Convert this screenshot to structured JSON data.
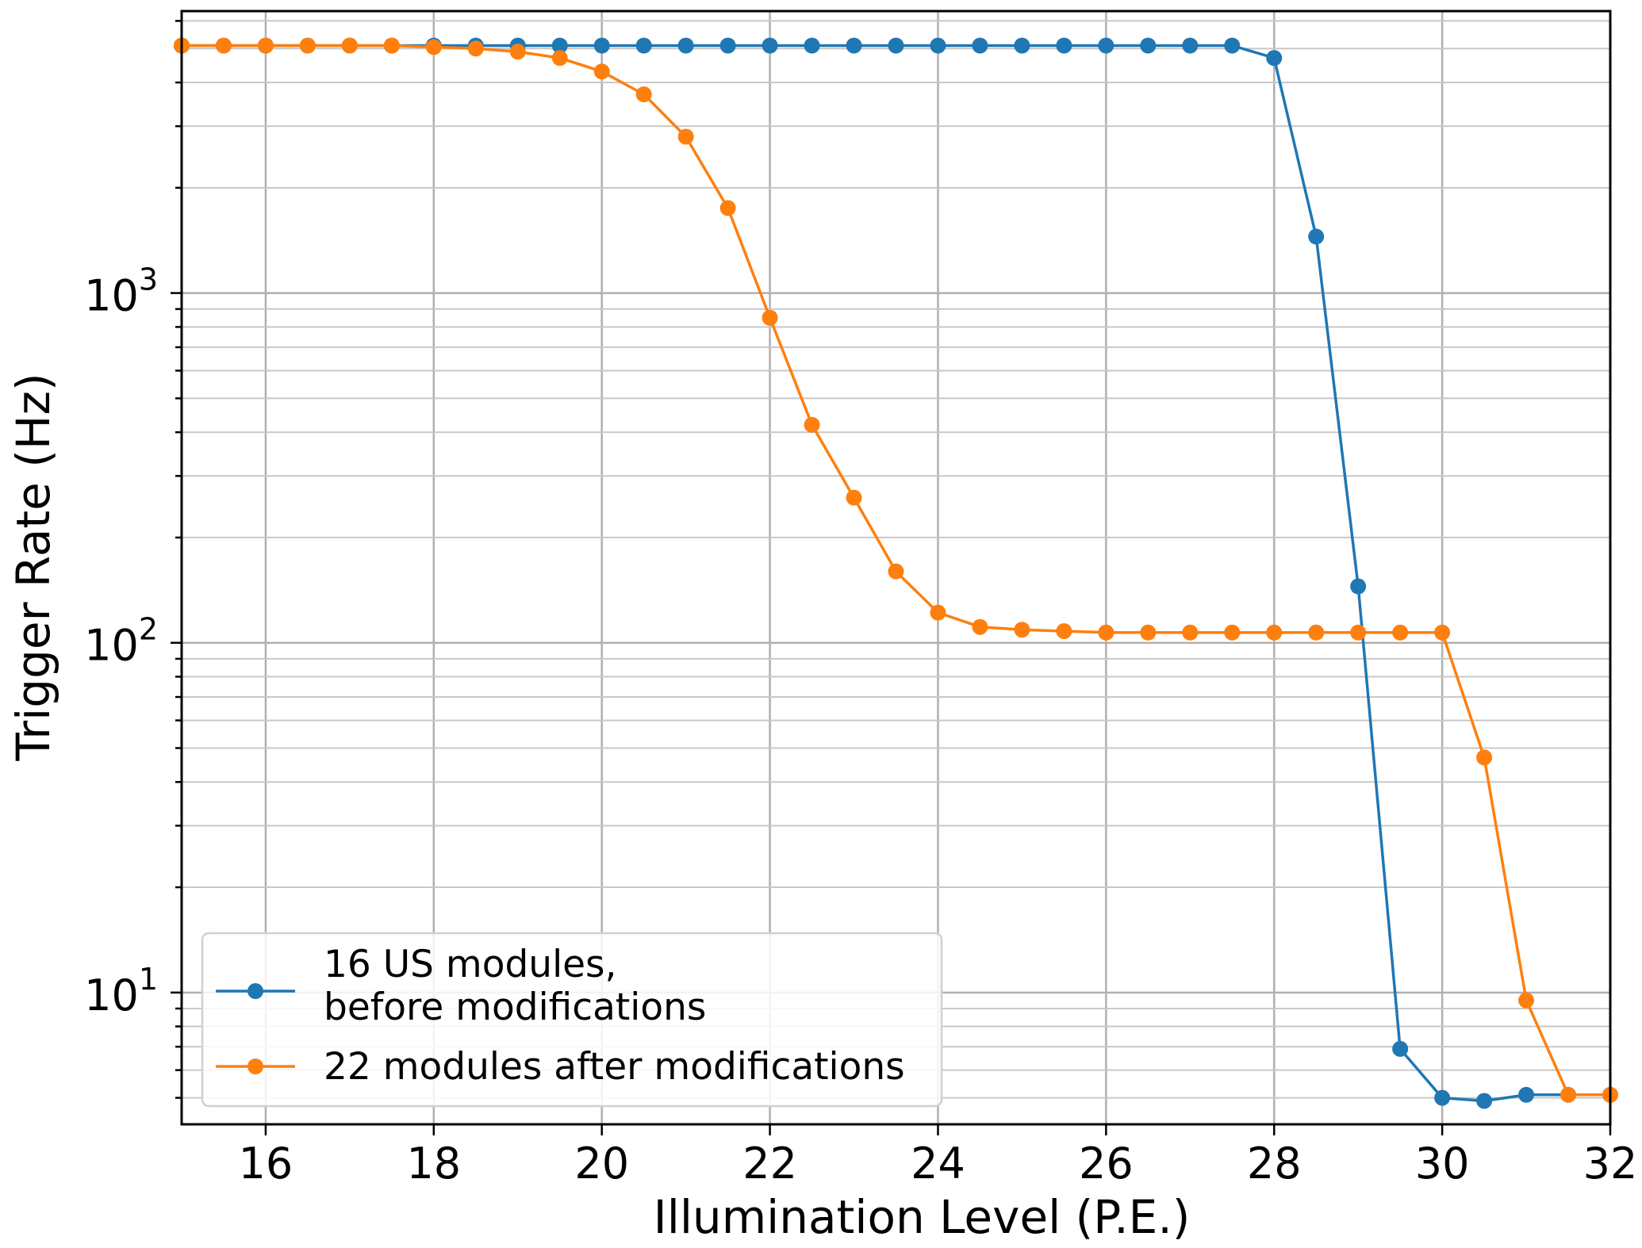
{
  "chart_data": {
    "type": "line",
    "title": "",
    "xlabel": "Illumination Level (P.E.)",
    "ylabel": "Trigger Rate (Hz)",
    "xlim": [
      15,
      32
    ],
    "ylim": [
      4.2,
      6400
    ],
    "yscale": "log",
    "grid": true,
    "legend_position": "lower-left",
    "x_ticks": [
      16,
      18,
      20,
      22,
      24,
      26,
      28,
      30,
      32
    ],
    "y_ticks": [
      {
        "value": 10,
        "base": "10",
        "exp": "1"
      },
      {
        "value": 100,
        "base": "10",
        "exp": "2"
      },
      {
        "value": 1000,
        "base": "10",
        "exp": "3"
      }
    ],
    "series": [
      {
        "name_lines": [
          "16 US modules,",
          " before modifications"
        ],
        "color": "#1f77b4",
        "x": [
          15,
          15.5,
          16,
          16.5,
          17,
          17.5,
          18,
          18.5,
          19,
          19.5,
          20,
          20.5,
          21,
          21.5,
          22,
          22.5,
          23,
          23.5,
          24,
          24.5,
          25,
          25.5,
          26,
          26.5,
          27,
          27.5,
          28,
          28.5,
          29,
          29.5,
          30,
          30.5,
          31,
          31.5,
          32
        ],
        "y": [
          5100,
          5100,
          5100,
          5100,
          5100,
          5100,
          5100,
          5100,
          5100,
          5100,
          5100,
          5100,
          5100,
          5100,
          5100,
          5100,
          5100,
          5100,
          5100,
          5100,
          5100,
          5100,
          5100,
          5100,
          5100,
          5100,
          4700,
          1450,
          145,
          6.9,
          5.0,
          4.9,
          5.1,
          5.1,
          5.1
        ]
      },
      {
        "name_lines": [
          "22 modules after modifications"
        ],
        "color": "#ff7f0e",
        "x": [
          15,
          15.5,
          16,
          16.5,
          17,
          17.5,
          18,
          18.5,
          19,
          19.5,
          20,
          20.5,
          21,
          21.5,
          22,
          22.5,
          23,
          23.5,
          24,
          24.5,
          25,
          25.5,
          26,
          26.5,
          27,
          27.5,
          28,
          28.5,
          29,
          29.5,
          30,
          30.5,
          31,
          31.5,
          32
        ],
        "y": [
          5100,
          5100,
          5100,
          5100,
          5100,
          5100,
          5050,
          5000,
          4900,
          4700,
          4300,
          3700,
          2800,
          1750,
          850,
          420,
          260,
          160,
          122,
          111,
          109,
          108,
          107,
          107,
          107,
          107,
          107,
          107,
          107,
          107,
          107,
          47,
          9.5,
          5.1,
          5.1
        ]
      }
    ]
  }
}
